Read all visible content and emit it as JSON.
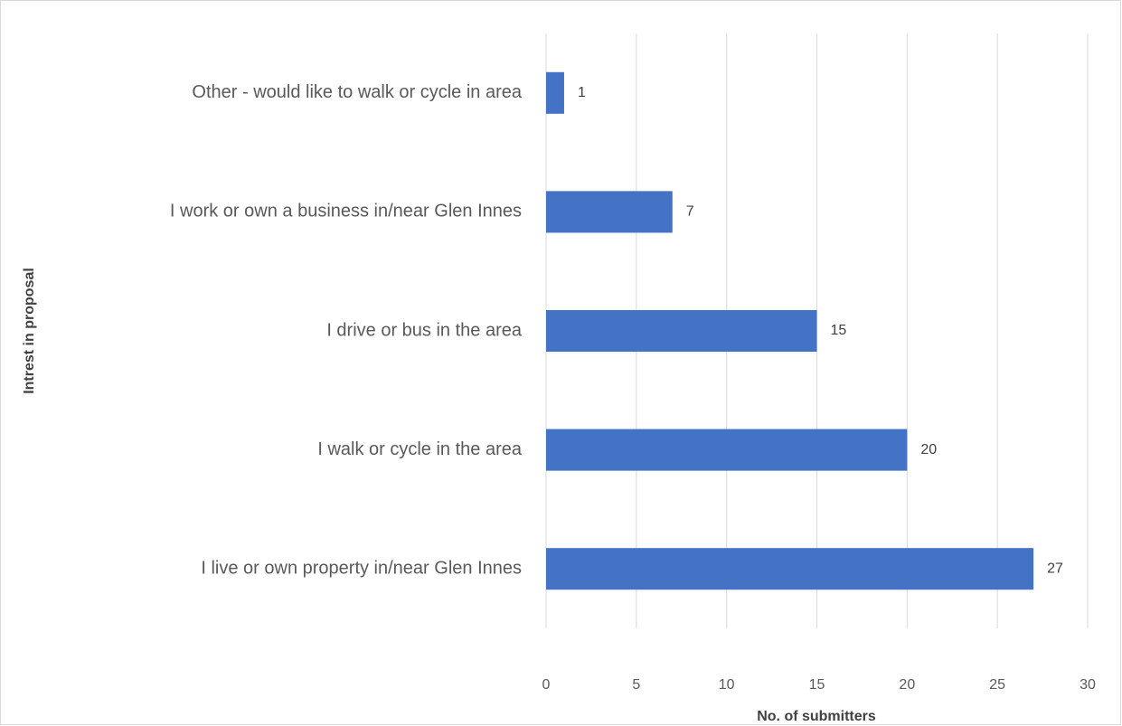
{
  "chart_data": {
    "type": "bar",
    "orientation": "horizontal",
    "x_label": "No. of submitters",
    "y_label": "Intrest in proposal",
    "categories": [
      "Other - would like to walk or cycle in area",
      "I work or own a business in/near Glen Innes",
      "I drive or bus in the area",
      "I walk or cycle in the area",
      "I live or own property in/near Glen Innes"
    ],
    "values": [
      1,
      7,
      15,
      20,
      27
    ],
    "color": "#4472c4",
    "xlim": [
      0,
      30
    ],
    "xticks": [
      0,
      5,
      10,
      15,
      20,
      25,
      30
    ],
    "grid": true
  }
}
